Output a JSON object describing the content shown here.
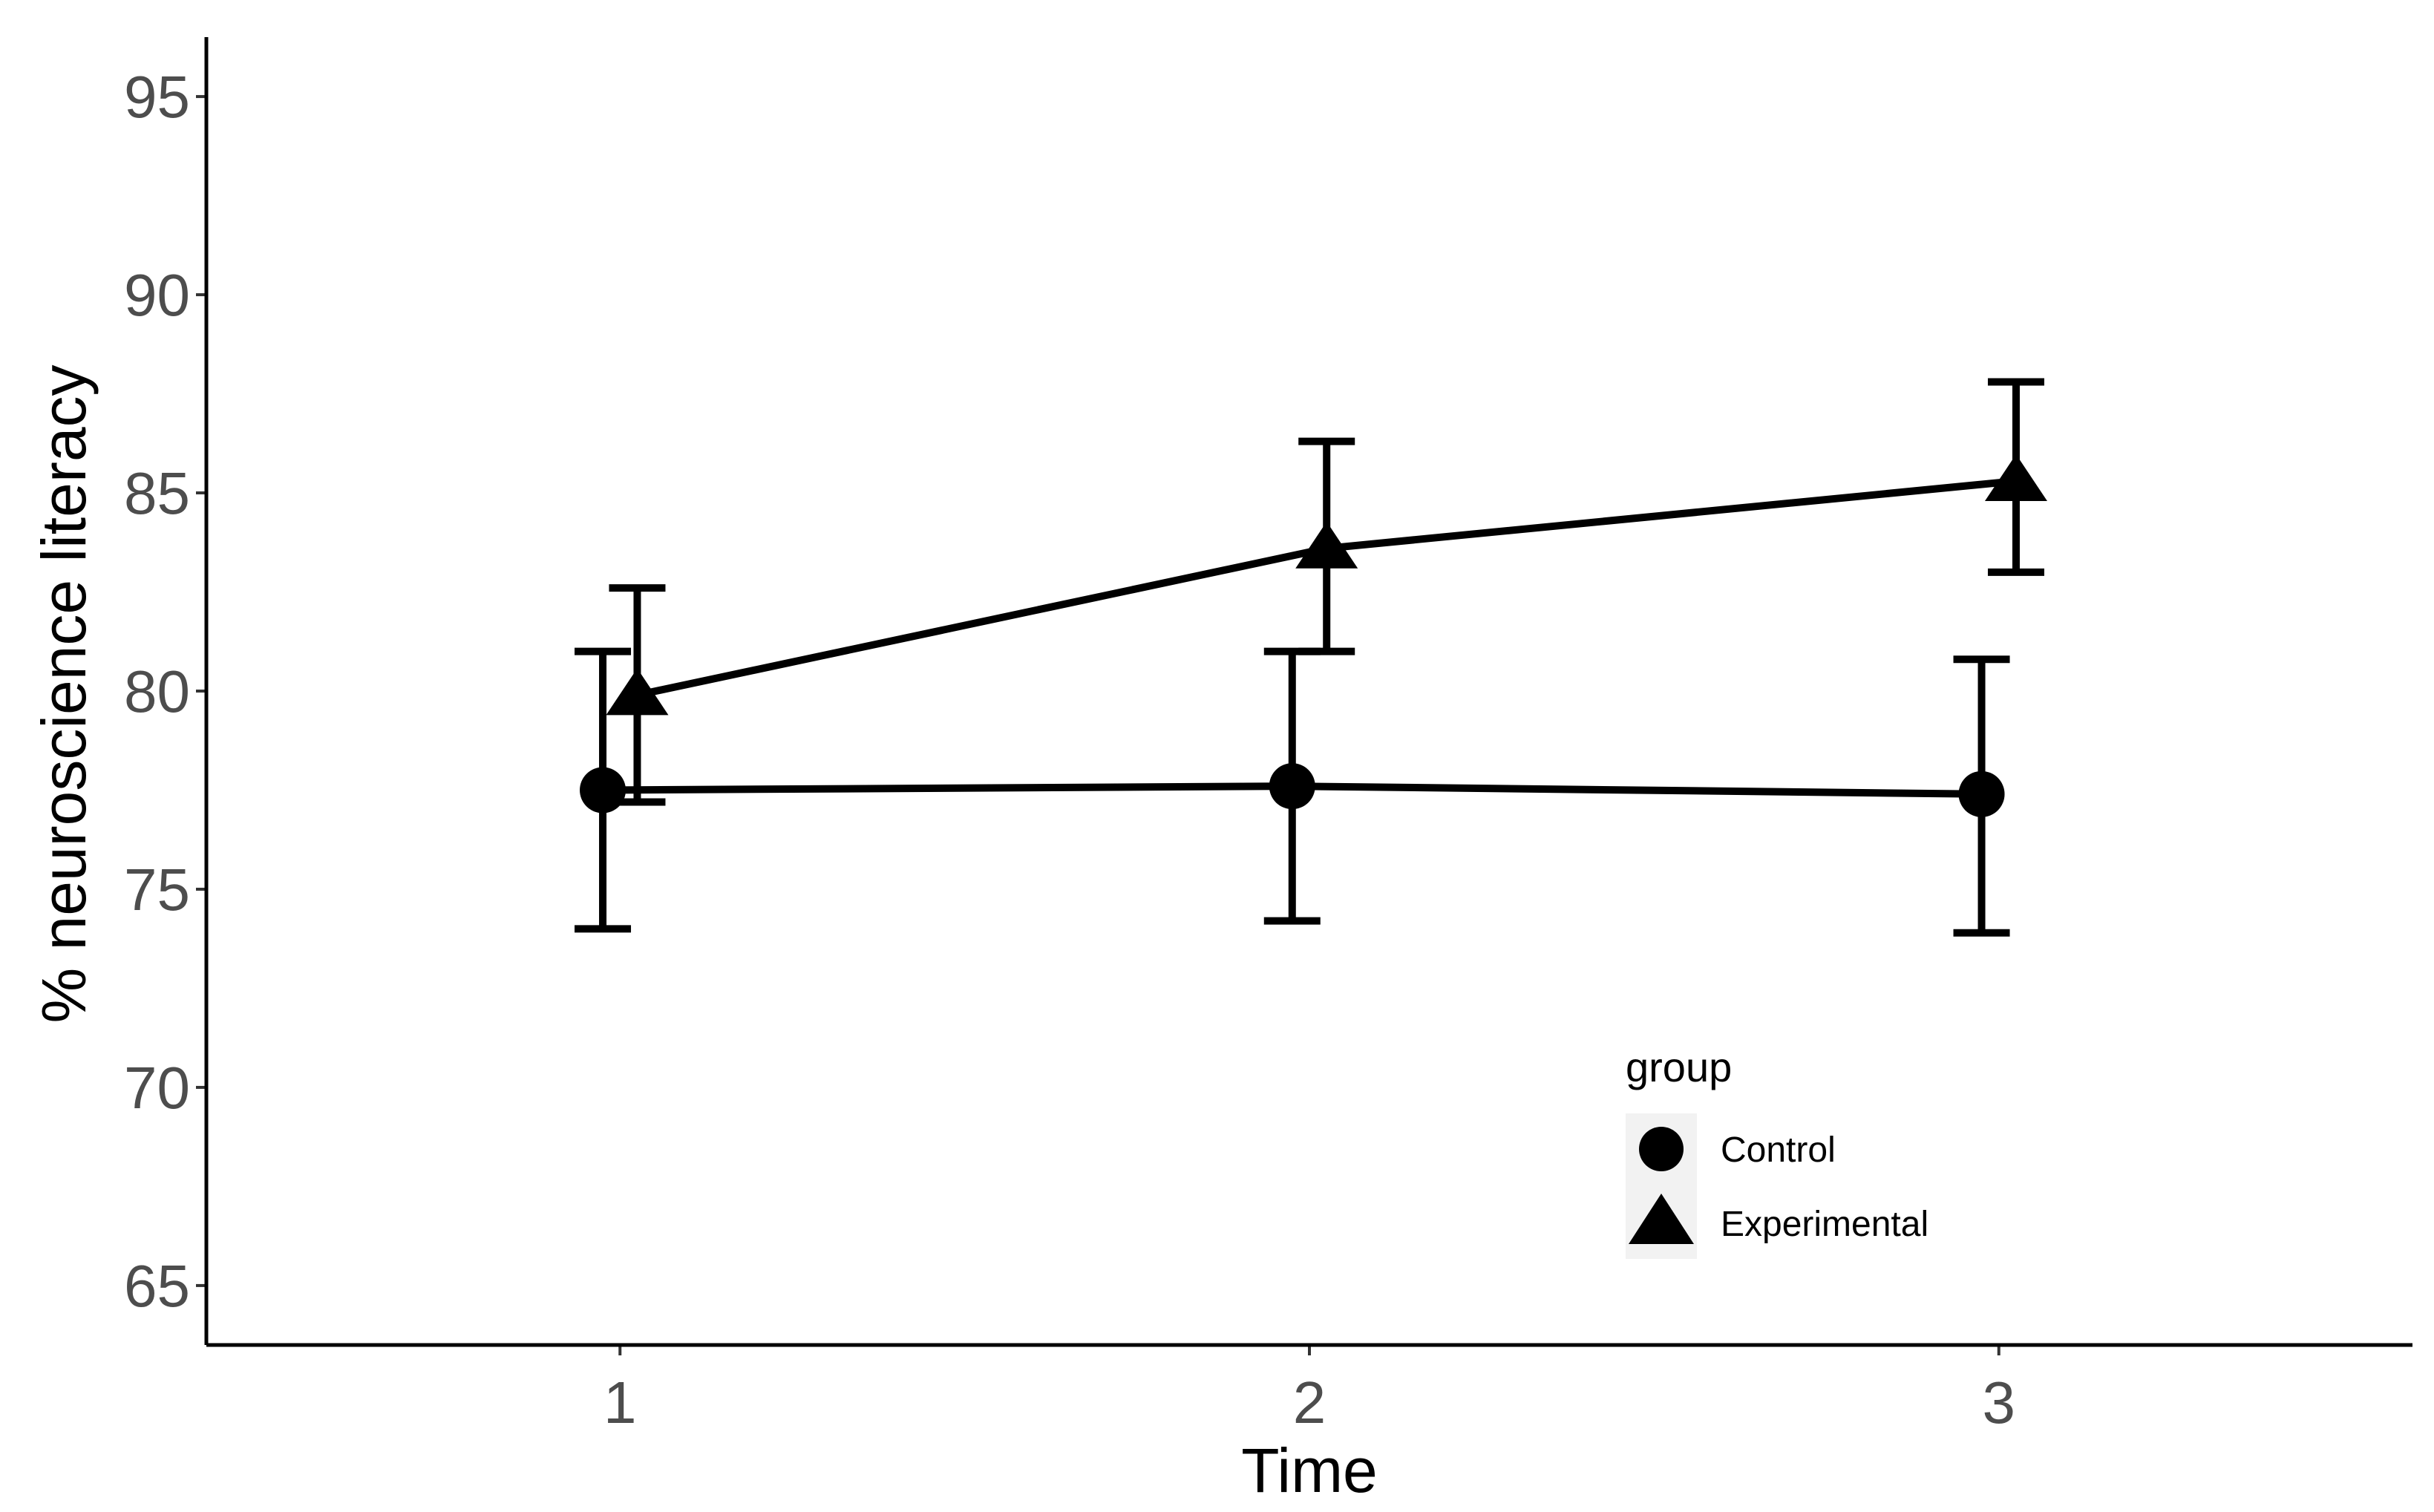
{
  "chart_data": {
    "type": "line",
    "title": "",
    "xlabel": "Time",
    "ylabel": "% neuroscience literacy",
    "x": [
      1,
      2,
      3
    ],
    "xlim": [
      0.4,
      3.6
    ],
    "ylim": [
      63.5,
      96.5
    ],
    "yticks": [
      65,
      70,
      75,
      80,
      85,
      90,
      95
    ],
    "xtick_labels": [
      "1",
      "2",
      "3"
    ],
    "ytick_labels": [
      "65",
      "70",
      "75",
      "80",
      "85",
      "90",
      "95"
    ],
    "series": [
      {
        "name": "Control",
        "marker": "circle",
        "offset": -0.025,
        "values": [
          77.5,
          77.6,
          77.4
        ],
        "error_low": [
          74.0,
          74.2,
          73.9
        ],
        "error_high": [
          81.0,
          81.0,
          80.8
        ]
      },
      {
        "name": "Experimental",
        "marker": "triangle",
        "offset": 0.025,
        "values": [
          79.9,
          83.6,
          85.3
        ],
        "error_low": [
          77.2,
          81.0,
          83.0
        ],
        "error_high": [
          82.6,
          86.3,
          87.8
        ]
      }
    ],
    "legend": {
      "title": "group",
      "placement": "bottom-right",
      "entries": [
        "Control",
        "Experimental"
      ]
    },
    "colors": {
      "line": "#000000",
      "tick_text": "#4d4d4d",
      "legend_key_bg": "#f2f2f2"
    }
  }
}
